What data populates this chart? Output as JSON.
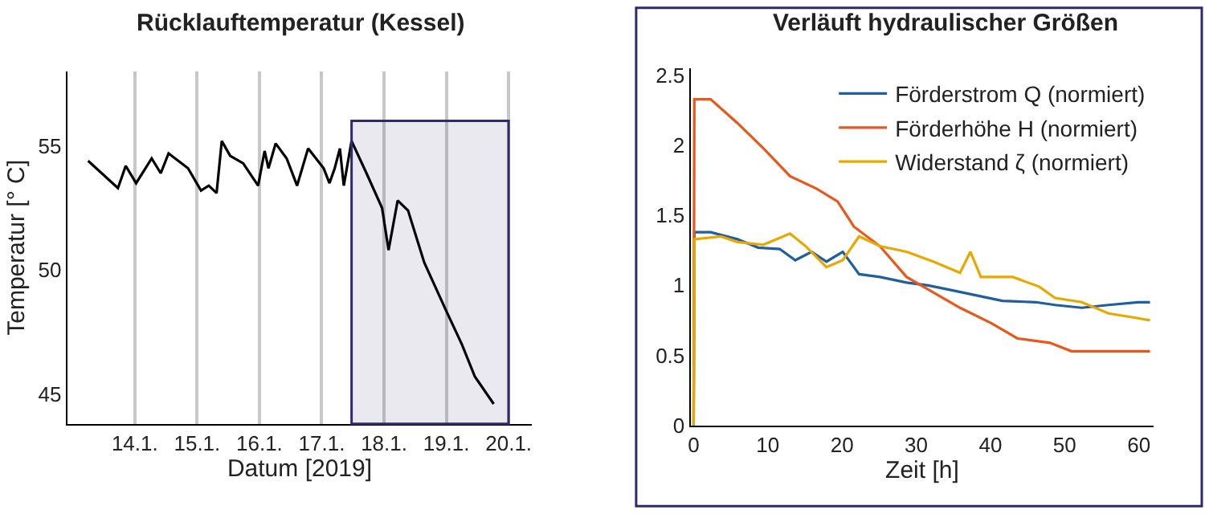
{
  "chart_data": [
    {
      "type": "line",
      "title": "Rücklauftemperatur (Kessel)",
      "xlabel": "Datum [2019]",
      "ylabel": "Temperatur [° C]",
      "xlim": [
        "2019-01-12T22:00",
        "2019-01-20T09:00"
      ],
      "ylim": [
        43.8,
        58
      ],
      "xticks": [
        {
          "value": "2019-01-14",
          "label": "14.1."
        },
        {
          "value": "2019-01-15",
          "label": "15.1."
        },
        {
          "value": "2019-01-16",
          "label": "16.1."
        },
        {
          "value": "2019-01-17",
          "label": "17.1."
        },
        {
          "value": "2019-01-18",
          "label": "18.1."
        },
        {
          "value": "2019-01-19",
          "label": "19.1."
        },
        {
          "value": "2019-01-20",
          "label": "20.1."
        }
      ],
      "yticks": [
        45,
        50,
        55
      ],
      "grid": "x",
      "bands": [
        {
          "axis": "x",
          "from": "2019-01-17T11:30",
          "to": "2019-01-20T00:00",
          "color": "#2e2a6e"
        }
      ],
      "series": [
        {
          "color": "#000000",
          "x": [
            "2019-01-13T06:00",
            "2019-01-13T17:30",
            "2019-01-13T20:30",
            "2019-01-14T00:30",
            "2019-01-14T06:30",
            "2019-01-14T10:00",
            "2019-01-14T13:00",
            "2019-01-14T20:30",
            "2019-01-15T01:30",
            "2019-01-15T04:30",
            "2019-01-15T07:30",
            "2019-01-15T09:30",
            "2019-01-15T12:45",
            "2019-01-15T17:45",
            "2019-01-15T23:30",
            "2019-01-16T02:00",
            "2019-01-16T03:30",
            "2019-01-16T06:15",
            "2019-01-16T10:30",
            "2019-01-16T14:30",
            "2019-01-16T18:45",
            "2019-01-17T00:45",
            "2019-01-17T03:00",
            "2019-01-17T05:00",
            "2019-01-17T07:00",
            "2019-01-17T08:30",
            "2019-01-17T11:30",
            "2019-01-17T17:15",
            "2019-01-17T23:15",
            "2019-01-18T01:45",
            "2019-01-18T05:15",
            "2019-01-18T09:15",
            "2019-01-18T15:30",
            "2019-01-18T23:45",
            "2019-01-19T06:00",
            "2019-01-19T11:00",
            "2019-01-19T18:15"
          ],
          "values": [
            54.4,
            53.3,
            54.2,
            53.5,
            54.5,
            53.9,
            54.7,
            54.1,
            53.2,
            53.4,
            53.1,
            55.2,
            54.6,
            54.3,
            53.4,
            54.8,
            54.1,
            55.1,
            54.5,
            53.4,
            54.9,
            54.1,
            53.5,
            54.1,
            54.9,
            53.4,
            55.2,
            53.9,
            52.5,
            50.8,
            52.8,
            52.4,
            50.3,
            48.4,
            47.0,
            45.7,
            44.6
          ]
        }
      ]
    },
    {
      "type": "line",
      "title": "Verläuft hydraulischer Größen",
      "xlabel": "Zeit [h]",
      "xlim": [
        -0.4,
        62
      ],
      "ylim": [
        0,
        2.55
      ],
      "xticks": [
        0,
        10,
        20,
        30,
        40,
        50,
        60
      ],
      "yticks": [
        0,
        0.5,
        1,
        1.5,
        2,
        2.5
      ],
      "legend": "top right",
      "series": [
        {
          "name": "Förderstrom Q (normiert)",
          "color": "#1f5fa0",
          "x": [
            0,
            0.1,
            2.3,
            5.9,
            8.7,
            11.6,
            13.7,
            15.9,
            17.9,
            20.1,
            22.3,
            25.1,
            28.7,
            31.6,
            34.4,
            38,
            41.6,
            46.1,
            48.7,
            52.3,
            55.9,
            59.9,
            61.5
          ],
          "values": [
            0,
            1.38,
            1.38,
            1.33,
            1.27,
            1.26,
            1.18,
            1.24,
            1.17,
            1.24,
            1.08,
            1.06,
            1.02,
            1.0,
            0.97,
            0.93,
            0.89,
            0.88,
            0.86,
            0.84,
            0.86,
            0.88,
            0.88
          ]
        },
        {
          "name": "Förderhöhe H (normiert)",
          "color": "#e8581a",
          "x": [
            0,
            0.1,
            2.3,
            5.9,
            9.4,
            13,
            16.6,
            19.4,
            21.6,
            25.1,
            28.7,
            32.3,
            35.9,
            40.1,
            43.7,
            48,
            50.9,
            55.9,
            61.5
          ],
          "values": [
            0,
            2.33,
            2.33,
            2.16,
            1.98,
            1.78,
            1.69,
            1.6,
            1.42,
            1.28,
            1.06,
            0.95,
            0.84,
            0.73,
            0.62,
            0.59,
            0.53,
            0.53,
            0.53
          ]
        },
        {
          "name": "Widerstand ζ (normiert)",
          "color": "#e8a800",
          "x": [
            0,
            0.1,
            3.7,
            5.9,
            9.4,
            13,
            15.1,
            17.9,
            20.1,
            22.3,
            25.1,
            28.7,
            32.3,
            35.9,
            37.3,
            38.7,
            43,
            46.6,
            48.7,
            52.3,
            55.9,
            59.4,
            61.5
          ],
          "values": [
            0,
            1.33,
            1.35,
            1.31,
            1.29,
            1.37,
            1.28,
            1.13,
            1.18,
            1.35,
            1.28,
            1.24,
            1.17,
            1.09,
            1.24,
            1.06,
            1.06,
            0.99,
            0.91,
            0.88,
            0.8,
            0.77,
            0.75
          ]
        }
      ]
    }
  ]
}
